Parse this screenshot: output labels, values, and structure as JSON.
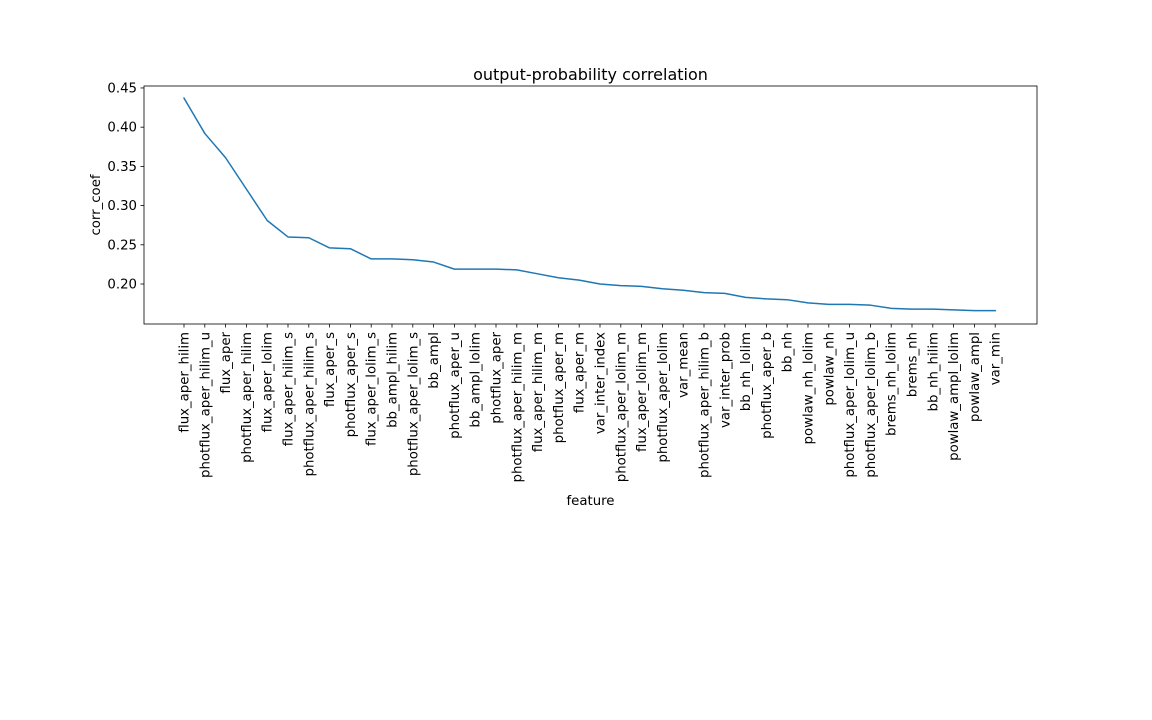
{
  "chart_data": {
    "type": "line",
    "title": "output-probability correlation",
    "xlabel": "feature",
    "ylabel": "corr_coef",
    "ylim": [
      0.149,
      0.4525
    ],
    "yticks": [
      "0.20",
      "0.25",
      "0.30",
      "0.35",
      "0.40",
      "0.45"
    ],
    "grid": false,
    "line_color": "#1f77b4",
    "categories": [
      "flux_aper_hilim",
      "photflux_aper_hilim_u",
      "flux_aper",
      "photflux_aper_hilim",
      "flux_aper_lolim",
      "flux_aper_hilim_s",
      "photflux_aper_hilim_s",
      "flux_aper_s",
      "photflux_aper_s",
      "flux_aper_lolim_s",
      "bb_ampl_hilim",
      "photflux_aper_lolim_s",
      "bb_ampl",
      "photflux_aper_u",
      "bb_ampl_lolim",
      "photflux_aper",
      "photflux_aper_hilim_m",
      "flux_aper_hilim_m",
      "photflux_aper_m",
      "flux_aper_m",
      "var_inter_index",
      "photflux_aper_lolim_m",
      "flux_aper_lolim_m",
      "photflux_aper_lolim",
      "var_mean",
      "photflux_aper_hilim_b",
      "var_inter_prob",
      "bb_nh_lolim",
      "photflux_aper_b",
      "bb_nh",
      "powlaw_nh_lolim",
      "powlaw_nh",
      "photflux_aper_lolim_u",
      "photflux_aper_lolim_b",
      "brems_nh_lolim",
      "brems_nh",
      "bb_nh_hilim",
      "powlaw_ampl_lolim",
      "powlaw_ampl",
      "var_min"
    ],
    "series": [
      {
        "values": [
          0.437,
          0.392,
          0.361,
          0.321,
          0.281,
          0.26,
          0.259,
          0.246,
          0.245,
          0.232,
          0.232,
          0.231,
          0.228,
          0.219,
          0.219,
          0.219,
          0.218,
          0.213,
          0.208,
          0.205,
          0.2,
          0.198,
          0.197,
          0.194,
          0.192,
          0.189,
          0.188,
          0.183,
          0.181,
          0.18,
          0.176,
          0.174,
          0.174,
          0.173,
          0.169,
          0.168,
          0.168,
          0.167,
          0.166,
          0.166
        ]
      }
    ]
  }
}
